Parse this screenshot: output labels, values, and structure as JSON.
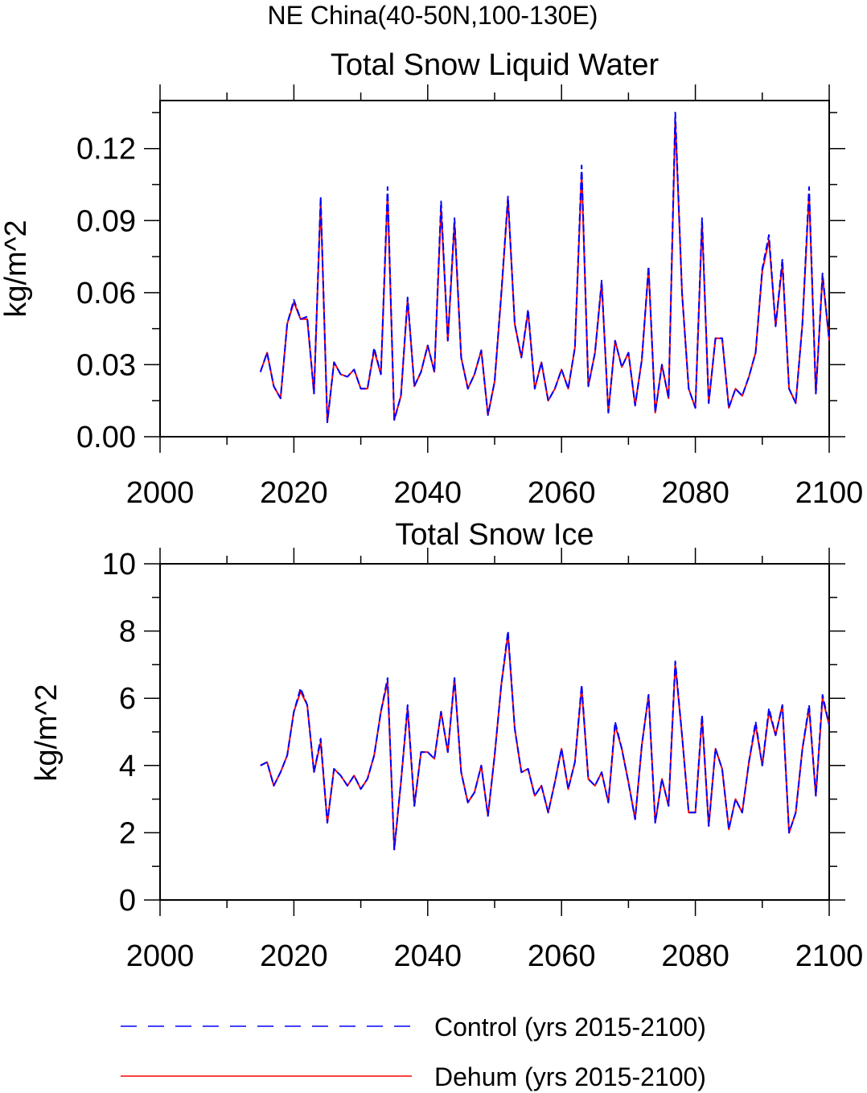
{
  "figure_title": "NE China(40-50N,100-130E)",
  "legend": [
    {
      "label": "Control (yrs 2015-2100)",
      "color": "#0000ff",
      "style": "dashed"
    },
    {
      "label": "Dehum (yrs 2015-2100)",
      "color": "#ff0000",
      "style": "solid"
    }
  ],
  "chart_data": [
    {
      "type": "line",
      "title": "Total Snow Liquid Water",
      "xlabel": "",
      "ylabel": "kg/m^2",
      "xlim": [
        2000,
        2100
      ],
      "ylim": [
        0,
        0.14
      ],
      "x_major_ticks": [
        2000,
        2020,
        2040,
        2060,
        2080,
        2100
      ],
      "x_tick_labels": [
        "2000",
        "2020",
        "2040",
        "2060",
        "2080",
        "2100"
      ],
      "y_major_ticks": [
        0,
        0.03,
        0.06,
        0.09,
        0.12
      ],
      "y_tick_labels": [
        "0.00",
        "0.03",
        "0.06",
        "0.09",
        "0.12"
      ],
      "x": [
        2015,
        2016,
        2017,
        2018,
        2019,
        2020,
        2021,
        2022,
        2023,
        2024,
        2025,
        2026,
        2027,
        2028,
        2029,
        2030,
        2031,
        2032,
        2033,
        2034,
        2035,
        2036,
        2037,
        2038,
        2039,
        2040,
        2041,
        2042,
        2043,
        2044,
        2045,
        2046,
        2047,
        2048,
        2049,
        2050,
        2051,
        2052,
        2053,
        2054,
        2055,
        2056,
        2057,
        2058,
        2059,
        2060,
        2061,
        2062,
        2063,
        2064,
        2065,
        2066,
        2067,
        2068,
        2069,
        2070,
        2071,
        2072,
        2073,
        2074,
        2075,
        2076,
        2077,
        2078,
        2079,
        2080,
        2081,
        2082,
        2083,
        2084,
        2085,
        2086,
        2087,
        2088,
        2089,
        2090,
        2091,
        2092,
        2093,
        2094,
        2095,
        2096,
        2097,
        2098,
        2099,
        2100
      ],
      "series": [
        {
          "name": "Control (yrs 2015-2100)",
          "color": "#0000ff",
          "style": "dashed",
          "values": [
            0.027,
            0.035,
            0.021,
            0.016,
            0.047,
            0.057,
            0.049,
            0.05,
            0.018,
            0.1,
            0.006,
            0.031,
            0.026,
            0.025,
            0.028,
            0.02,
            0.02,
            0.037,
            0.026,
            0.104,
            0.007,
            0.017,
            0.058,
            0.021,
            0.027,
            0.038,
            0.027,
            0.098,
            0.04,
            0.091,
            0.033,
            0.02,
            0.026,
            0.036,
            0.009,
            0.023,
            0.06,
            0.1,
            0.047,
            0.033,
            0.053,
            0.02,
            0.031,
            0.015,
            0.02,
            0.028,
            0.02,
            0.037,
            0.113,
            0.021,
            0.035,
            0.065,
            0.01,
            0.04,
            0.029,
            0.035,
            0.013,
            0.032,
            0.071,
            0.01,
            0.03,
            0.016,
            0.135,
            0.06,
            0.02,
            0.012,
            0.091,
            0.014,
            0.041,
            0.041,
            0.012,
            0.02,
            0.017,
            0.025,
            0.035,
            0.07,
            0.084,
            0.046,
            0.074,
            0.02,
            0.014,
            0.047,
            0.104,
            0.018,
            0.068,
            0.04
          ]
        },
        {
          "name": "Dehum (yrs 2015-2100)",
          "color": "#ff0000",
          "style": "solid",
          "values": [
            0.027,
            0.035,
            0.021,
            0.016,
            0.047,
            0.056,
            0.049,
            0.049,
            0.018,
            0.098,
            0.006,
            0.031,
            0.026,
            0.025,
            0.028,
            0.02,
            0.02,
            0.036,
            0.026,
            0.101,
            0.007,
            0.017,
            0.057,
            0.021,
            0.027,
            0.038,
            0.027,
            0.095,
            0.04,
            0.089,
            0.033,
            0.02,
            0.026,
            0.036,
            0.009,
            0.023,
            0.059,
            0.099,
            0.047,
            0.033,
            0.052,
            0.02,
            0.031,
            0.015,
            0.02,
            0.028,
            0.02,
            0.037,
            0.11,
            0.021,
            0.035,
            0.064,
            0.01,
            0.04,
            0.029,
            0.035,
            0.013,
            0.032,
            0.07,
            0.01,
            0.03,
            0.016,
            0.132,
            0.06,
            0.02,
            0.012,
            0.089,
            0.014,
            0.041,
            0.041,
            0.012,
            0.02,
            0.017,
            0.025,
            0.035,
            0.069,
            0.082,
            0.046,
            0.072,
            0.02,
            0.014,
            0.047,
            0.101,
            0.018,
            0.067,
            0.04
          ]
        }
      ]
    },
    {
      "type": "line",
      "title": "Total Snow Ice",
      "xlabel": "",
      "ylabel": "kg/m^2",
      "xlim": [
        2000,
        2100
      ],
      "ylim": [
        0,
        10
      ],
      "x_major_ticks": [
        2000,
        2020,
        2040,
        2060,
        2080,
        2100
      ],
      "x_tick_labels": [
        "2000",
        "2020",
        "2040",
        "2060",
        "2080",
        "2100"
      ],
      "y_major_ticks": [
        0,
        2,
        4,
        6,
        8,
        10
      ],
      "y_tick_labels": [
        "0",
        "2",
        "4",
        "6",
        "8",
        "10"
      ],
      "x": [
        2015,
        2016,
        2017,
        2018,
        2019,
        2020,
        2021,
        2022,
        2023,
        2024,
        2025,
        2026,
        2027,
        2028,
        2029,
        2030,
        2031,
        2032,
        2033,
        2034,
        2035,
        2036,
        2037,
        2038,
        2039,
        2040,
        2041,
        2042,
        2043,
        2044,
        2045,
        2046,
        2047,
        2048,
        2049,
        2050,
        2051,
        2052,
        2053,
        2054,
        2055,
        2056,
        2057,
        2058,
        2059,
        2060,
        2061,
        2062,
        2063,
        2064,
        2065,
        2066,
        2067,
        2068,
        2069,
        2070,
        2071,
        2072,
        2073,
        2074,
        2075,
        2076,
        2077,
        2078,
        2079,
        2080,
        2081,
        2082,
        2083,
        2084,
        2085,
        2086,
        2087,
        2088,
        2089,
        2090,
        2091,
        2092,
        2093,
        2094,
        2095,
        2096,
        2097,
        2098,
        2099,
        2100
      ],
      "series": [
        {
          "name": "Control (yrs 2015-2100)",
          "color": "#0000ff",
          "style": "dashed",
          "values": [
            4.0,
            4.1,
            3.4,
            3.8,
            4.3,
            5.6,
            6.3,
            5.8,
            3.8,
            4.8,
            2.3,
            3.9,
            3.7,
            3.4,
            3.7,
            3.3,
            3.6,
            4.3,
            5.6,
            6.6,
            1.5,
            3.5,
            5.8,
            2.8,
            4.4,
            4.4,
            4.2,
            5.6,
            4.4,
            6.6,
            3.8,
            2.9,
            3.2,
            4.0,
            2.5,
            4.3,
            6.4,
            8.0,
            5.1,
            3.8,
            3.9,
            3.1,
            3.4,
            2.6,
            3.5,
            4.5,
            3.3,
            4.1,
            6.4,
            3.6,
            3.4,
            3.8,
            2.9,
            5.3,
            4.5,
            3.5,
            2.4,
            4.6,
            6.1,
            2.3,
            3.6,
            2.8,
            7.1,
            4.9,
            2.6,
            2.6,
            5.5,
            2.2,
            4.5,
            3.9,
            2.1,
            3.0,
            2.6,
            4.1,
            5.3,
            4.0,
            5.7,
            4.9,
            5.8,
            2.0,
            2.6,
            4.5,
            5.8,
            3.1,
            6.1,
            5.2
          ]
        },
        {
          "name": "Dehum (yrs 2015-2100)",
          "color": "#ff0000",
          "style": "solid",
          "values": [
            4.0,
            4.1,
            3.4,
            3.8,
            4.3,
            5.6,
            6.2,
            5.8,
            3.8,
            4.7,
            2.3,
            3.9,
            3.7,
            3.4,
            3.7,
            3.3,
            3.6,
            4.3,
            5.6,
            6.5,
            1.5,
            3.5,
            5.7,
            2.8,
            4.4,
            4.4,
            4.2,
            5.6,
            4.4,
            6.6,
            3.8,
            2.9,
            3.2,
            4.0,
            2.5,
            4.3,
            6.4,
            7.9,
            5.1,
            3.8,
            3.9,
            3.1,
            3.4,
            2.6,
            3.5,
            4.5,
            3.3,
            4.1,
            6.3,
            3.6,
            3.4,
            3.8,
            2.9,
            5.2,
            4.5,
            3.5,
            2.4,
            4.6,
            6.1,
            2.3,
            3.6,
            2.8,
            7.0,
            4.9,
            2.6,
            2.6,
            5.4,
            2.2,
            4.5,
            3.9,
            2.1,
            3.0,
            2.6,
            4.1,
            5.2,
            4.0,
            5.6,
            4.9,
            5.8,
            2.0,
            2.6,
            4.5,
            5.7,
            3.1,
            6.0,
            5.2
          ]
        }
      ]
    }
  ]
}
